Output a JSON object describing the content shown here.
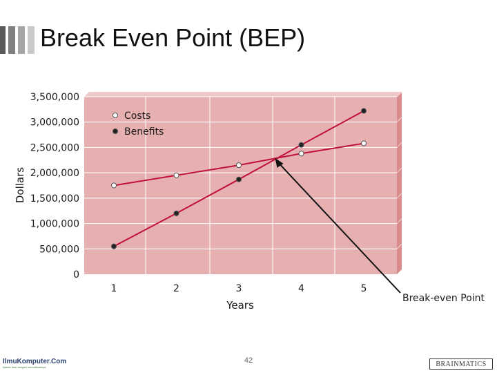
{
  "slide": {
    "title": "Break Even Point (BEP)",
    "page_number": "42",
    "logo_left_main": "IlmuKomputer.Com",
    "logo_left_sub": "Ikatlah ilmu dengan menuliskannya",
    "logo_right": "BRAINMATICS",
    "accent_bar_colors": [
      "#5a5a5a",
      "#7f7f7f",
      "#a6a6a6",
      "#c9c9c9"
    ]
  },
  "chart_data": {
    "type": "line",
    "title": "",
    "xlabel": "Years",
    "ylabel": "Dollars",
    "categories": [
      "1",
      "2",
      "3",
      "4",
      "5"
    ],
    "ytick_labels": [
      "0",
      "500,000",
      "1,000,000",
      "1,500,000",
      "2,000,000",
      "2,500,000",
      "3,000,000",
      "3,500,000"
    ],
    "ytick_values": [
      0,
      500000,
      1000000,
      1500000,
      2000000,
      2500000,
      3000000,
      3500000
    ],
    "ylim": [
      0,
      3500000
    ],
    "grid": true,
    "legend_position": "top-left",
    "series": [
      {
        "name": "Costs",
        "marker": "open-circle",
        "values": [
          1750000,
          1950000,
          2150000,
          2380000,
          2580000
        ]
      },
      {
        "name": "Benefits",
        "marker": "filled-circle",
        "values": [
          550000,
          1200000,
          1870000,
          2550000,
          3220000
        ]
      }
    ],
    "annotation": {
      "text": "Break-even Point",
      "x": 3.58,
      "y": 2290000
    },
    "colors": {
      "plot_bg": "#e6b0b0",
      "line": "#c0103a",
      "grid": "#ffffff",
      "side": "#d98a8a",
      "text": "#1a1a1a"
    }
  }
}
